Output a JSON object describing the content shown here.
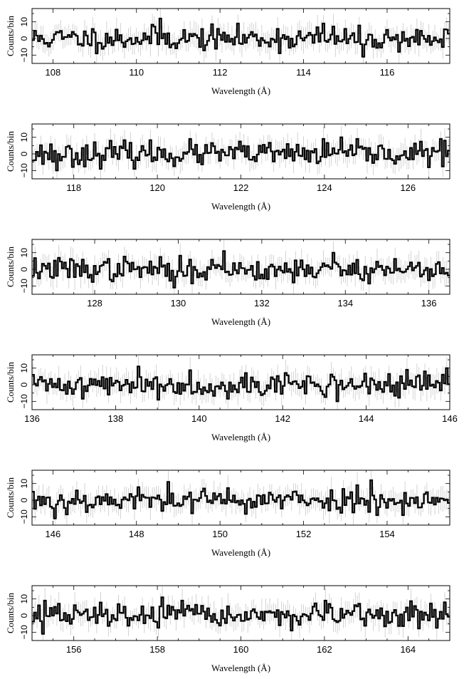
{
  "colors": {
    "line": "#000000",
    "errorbar": "#c8c8c8",
    "frame": "#000000"
  },
  "chart_data": [
    {
      "type": "line",
      "step": true,
      "xlabel": "Wavelength (Å)",
      "ylabel": "Counts/bin",
      "xlim": [
        107.5,
        117.5
      ],
      "ylim": [
        -15,
        18
      ],
      "xticks": [
        "108",
        "110",
        "112",
        "114",
        "116"
      ],
      "yticks": [
        "10",
        "0",
        "−10"
      ],
      "series": [
        {
          "seed": 11,
          "peaks": [
            [
              110.55,
              12
            ],
            [
              114.45,
              9
            ],
            [
              115.4,
              -11
            ]
          ]
        }
      ]
    },
    {
      "type": "line",
      "step": true,
      "xlabel": "Wavelength (Å)",
      "ylabel": "Counts/bin",
      "xlim": [
        117,
        127
      ],
      "ylim": [
        -15,
        18
      ],
      "xticks": [
        "118",
        "120",
        "122",
        "124",
        "126"
      ],
      "yticks": [
        "10",
        "0",
        "−10"
      ],
      "series": [
        {
          "seed": 23,
          "peaks": [
            [
              124.4,
              10
            ],
            [
              126.85,
              8
            ],
            [
              117.55,
              -10
            ]
          ]
        }
      ]
    },
    {
      "type": "line",
      "step": true,
      "xlabel": "Wavelength (Å)",
      "ylabel": "Counts/bin",
      "xlim": [
        126.5,
        136.5
      ],
      "ylim": [
        -15,
        18
      ],
      "xticks": [
        "128",
        "130",
        "132",
        "134",
        "136"
      ],
      "yticks": [
        "10",
        "0",
        "−10"
      ],
      "series": [
        {
          "seed": 37,
          "peaks": [
            [
              131.05,
              11
            ],
            [
              133.7,
              10
            ],
            [
              129.9,
              -11
            ]
          ]
        }
      ]
    },
    {
      "type": "line",
      "step": true,
      "xlabel": "Wavelength (Å)",
      "ylabel": "Counts/bin",
      "xlim": [
        136,
        146
      ],
      "ylim": [
        -15,
        18
      ],
      "xticks": [
        "136",
        "138",
        "140",
        "142",
        "144",
        "146"
      ],
      "yticks": [
        "10",
        "0",
        "−10"
      ],
      "series": [
        {
          "seed": 41,
          "peaks": [
            [
              138.5,
              11
            ],
            [
              145.9,
              10
            ],
            [
              143.3,
              -10
            ]
          ]
        }
      ]
    },
    {
      "type": "line",
      "step": true,
      "xlabel": "Wavelength (Å)",
      "ylabel": "Counts/bin",
      "xlim": [
        145.5,
        155.5
      ],
      "ylim": [
        -15,
        18
      ],
      "xticks": [
        "146",
        "148",
        "150",
        "152",
        "154"
      ],
      "yticks": [
        "10",
        "0",
        "−10"
      ],
      "series": [
        {
          "seed": 53,
          "peaks": [
            [
              153.6,
              12
            ],
            [
              148.75,
              11
            ],
            [
              146.0,
              -11
            ]
          ]
        }
      ]
    },
    {
      "type": "line",
      "step": true,
      "xlabel": "Wavelength (Å)",
      "ylabel": "Counts/bin",
      "xlim": [
        155,
        165
      ],
      "ylim": [
        -15,
        18
      ],
      "xticks": [
        "156",
        "158",
        "160",
        "162",
        "164"
      ],
      "yticks": [
        "10",
        "0",
        "−10"
      ],
      "series": [
        {
          "seed": 67,
          "peaks": [
            [
              158.1,
              11
            ],
            [
              155.3,
              9
            ],
            [
              155.25,
              -11
            ]
          ]
        }
      ]
    }
  ]
}
